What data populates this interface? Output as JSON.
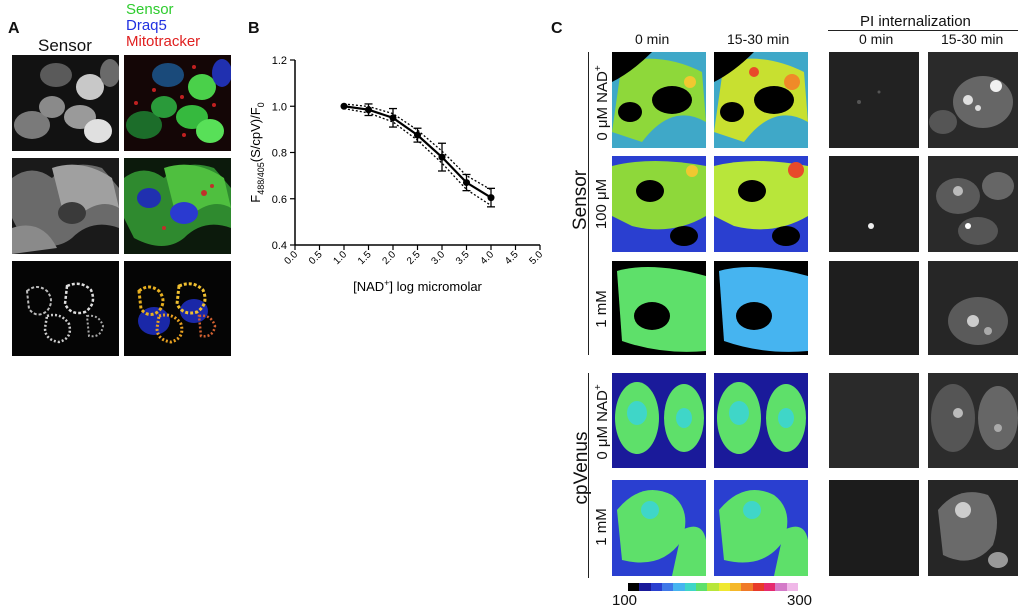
{
  "panelA": {
    "letter": "A",
    "col_title": "Sensor",
    "legend": [
      {
        "text": "Sensor",
        "color": "#2ecc2e"
      },
      {
        "text": "Draq5",
        "color": "#2030e0"
      },
      {
        "text": "Mitotracker",
        "color": "#e02020"
      }
    ]
  },
  "panelB": {
    "letter": "B",
    "chart_data": {
      "type": "line",
      "ylabel_main": "F",
      "ylabel_sub": "488/405",
      "ylabel_rest": "(S/cpV)/F",
      "ylabel_sub2": "0",
      "xlabel_pre": "[NAD",
      "xlabel_sup": "+",
      "xlabel_post": "] log micromolar",
      "xlim": [
        0.0,
        5.0
      ],
      "ylim": [
        0.4,
        1.2
      ],
      "xticks": [
        "0.0",
        "0.5",
        "1.0",
        "1.5",
        "2.0",
        "2.5",
        "3.0",
        "3.5",
        "4.0",
        "4.5",
        "5.0"
      ],
      "yticks": [
        "0.4",
        "0.6",
        "0.8",
        "1.0",
        "1.2"
      ],
      "points": [
        {
          "x": 1.0,
          "y": 1.0,
          "err": 0.0
        },
        {
          "x": 1.5,
          "y": 0.985,
          "err": 0.025
        },
        {
          "x": 2.0,
          "y": 0.95,
          "err": 0.04
        },
        {
          "x": 2.5,
          "y": 0.875,
          "err": 0.03
        },
        {
          "x": 3.0,
          "y": 0.78,
          "err": 0.06
        },
        {
          "x": 3.5,
          "y": 0.67,
          "err": 0.035
        },
        {
          "x": 4.0,
          "y": 0.605,
          "err": 0.04
        }
      ]
    }
  },
  "panelC": {
    "letter": "C",
    "col_headers": [
      "0 min",
      "15-30 min"
    ],
    "pi_title": "PI internalization",
    "pi_headers": [
      "0 min",
      "15-30 min"
    ],
    "group_sensor": "Sensor",
    "group_cpvenus": "cpVenus",
    "row_sensor_0_pre": "0 μM NAD",
    "row_sensor_0_sup": "+",
    "row_sensor_100": "100 μM",
    "row_sensor_1mm": "1 mM",
    "row_cp_0_pre": "0 μM NAD",
    "row_cp_0_sup": "+",
    "row_cp_1mm": "1 mM",
    "colorbar_min": "100",
    "colorbar_max": "300",
    "colorbar_colors": [
      "#000000",
      "#1a1a9a",
      "#2a3fd0",
      "#3f78e8",
      "#46b4f0",
      "#3fd6c8",
      "#5ee06a",
      "#b8e63a",
      "#f0e830",
      "#f5b82a",
      "#f07a28",
      "#e83a2a",
      "#e62a6e",
      "#d47ac8",
      "#f0b8e8"
    ]
  }
}
